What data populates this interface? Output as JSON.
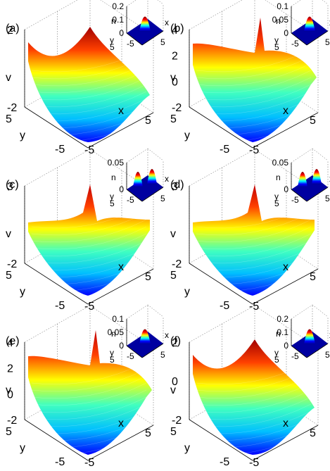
{
  "chart_data": [
    {
      "type": "surface3d",
      "panel": "(a)",
      "xlabel": "x",
      "ylabel": "y",
      "zlabel": "v",
      "xticks": [
        "5",
        "-5"
      ],
      "yticks": [
        "5",
        "-5"
      ],
      "zticks": [
        "2",
        "-2"
      ],
      "zlim": [
        -2,
        2
      ],
      "inset": {
        "type": "surface3d",
        "zlabel": "n",
        "xlabel": "x",
        "ylabel": "y",
        "zticks": [
          "0.2",
          "0.1",
          "0"
        ],
        "xticks": [
          "-5",
          "5"
        ],
        "yticks": [
          "5",
          "-5"
        ],
        "zlim": [
          0,
          0.2
        ],
        "peak": 0.2,
        "peaks": 1
      }
    },
    {
      "type": "surface3d",
      "panel": "(b)",
      "xlabel": "x",
      "ylabel": "y",
      "zlabel": "v",
      "xticks": [
        "5",
        "-5"
      ],
      "yticks": [
        "5",
        "-5"
      ],
      "zticks": [
        "4",
        "2",
        "0",
        "-2"
      ],
      "zlim": [
        -2,
        4
      ],
      "inset": {
        "type": "surface3d",
        "zlabel": "n",
        "xlabel": "x",
        "ylabel": "y",
        "zticks": [
          "0.1",
          "0.05",
          "0"
        ],
        "xticks": [
          "-5",
          "5"
        ],
        "yticks": [
          "5",
          "-5"
        ],
        "zlim": [
          0,
          0.1
        ],
        "peak": 0.1,
        "peaks": 1
      }
    },
    {
      "type": "surface3d",
      "panel": "(c)",
      "xlabel": "x",
      "ylabel": "y",
      "zlabel": "v",
      "xticks": [
        "5",
        "-5"
      ],
      "yticks": [
        "5",
        "-5"
      ],
      "zticks": [
        "3",
        "-2"
      ],
      "zlim": [
        -2,
        3
      ],
      "inset": {
        "type": "surface3d",
        "zlabel": "n",
        "xlabel": "x",
        "ylabel": "y",
        "zticks": [
          "0.05",
          "0"
        ],
        "xticks": [
          "-5",
          "5"
        ],
        "yticks": [
          "5",
          "-5"
        ],
        "zlim": [
          0,
          0.05
        ],
        "peak": 0.05,
        "peaks": 2
      }
    },
    {
      "type": "surface3d",
      "panel": "(d)",
      "xlabel": "x",
      "ylabel": "y",
      "zlabel": "v",
      "xticks": [
        "5",
        "-5"
      ],
      "yticks": [
        "5",
        "-5"
      ],
      "zticks": [
        "3",
        "-2"
      ],
      "zlim": [
        -2,
        3
      ],
      "inset": {
        "type": "surface3d",
        "zlabel": "n",
        "xlabel": "x",
        "ylabel": "y",
        "zticks": [
          "0.05",
          "0"
        ],
        "xticks": [
          "-5",
          "5"
        ],
        "yticks": [
          "5",
          "-5"
        ],
        "zlim": [
          0,
          0.05
        ],
        "peak": 0.05,
        "peaks": 2
      }
    },
    {
      "type": "surface3d",
      "panel": "(e)",
      "xlabel": "x",
      "ylabel": "y",
      "zlabel": "v",
      "xticks": [
        "5",
        "-5"
      ],
      "yticks": [
        "5",
        "-5"
      ],
      "zticks": [
        "4",
        "2",
        "0",
        "-2"
      ],
      "zlim": [
        -2,
        4
      ],
      "inset": {
        "type": "surface3d",
        "zlabel": "n",
        "xlabel": "x",
        "ylabel": "y",
        "zticks": [
          "0.1",
          "0.05",
          "0"
        ],
        "xticks": [
          "-5",
          "5"
        ],
        "yticks": [
          "5",
          "-5"
        ],
        "zlim": [
          0,
          0.1
        ],
        "peak": 0.1,
        "peaks": 1
      }
    },
    {
      "type": "surface3d",
      "panel": "(f)",
      "xlabel": "x",
      "ylabel": "y",
      "zlabel": "v",
      "xticks": [
        "5",
        "-5"
      ],
      "yticks": [
        "5",
        "-5"
      ],
      "zticks": [
        "2",
        "0",
        "-2"
      ],
      "zlim": [
        -2,
        2
      ],
      "inset": {
        "type": "surface3d",
        "zlabel": "n",
        "xlabel": "x",
        "ylabel": "y",
        "zticks": [
          "0.2",
          "0.1",
          "0"
        ],
        "xticks": [
          "-5",
          "5"
        ],
        "yticks": [
          "5",
          "-5"
        ],
        "zlim": [
          0,
          0.2
        ],
        "peak": 0.2,
        "peaks": 1
      }
    }
  ],
  "colormap": [
    "#00008f",
    "#0000ff",
    "#00ffff",
    "#ffff00",
    "#ff0000",
    "#800000"
  ]
}
